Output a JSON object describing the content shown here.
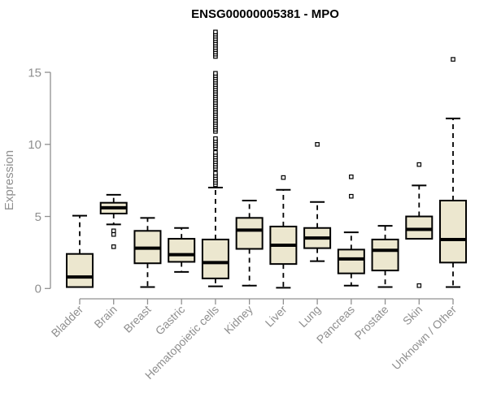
{
  "chart_data": {
    "type": "boxplot",
    "title": "ENSG00000005381 - MPO",
    "xlabel": "",
    "ylabel": "Expression",
    "y_ticks": [
      0,
      5,
      10,
      15
    ],
    "ylim": [
      0,
      17.9
    ],
    "grid": false,
    "legend": "none",
    "colors": {
      "box_fill": "#ece7cf",
      "box_border": "#000000",
      "median": "#000000",
      "whisker": "#000000",
      "outlier_fill": "#ffffff",
      "axis": "#909090",
      "tick_label": "#8f8f8f",
      "title": "#000000",
      "background": "#ffffff"
    },
    "categories": [
      "Bladder",
      "Brain",
      "Breast",
      "Gastric",
      "Hematopoietic cells",
      "Kidney",
      "Liver",
      "Lung",
      "Pancreas",
      "Prostate",
      "Skin",
      "Unknown / Other"
    ],
    "boxes": [
      {
        "category": "Bladder",
        "whisker_low": 0.1,
        "q1": 0.1,
        "median": 0.8,
        "q3": 2.4,
        "whisker_high": 5.05,
        "outliers": []
      },
      {
        "category": "Brain",
        "whisker_low": 4.45,
        "q1": 5.2,
        "median": 5.6,
        "q3": 5.95,
        "whisker_high": 6.5,
        "outliers": [
          4.0,
          3.75,
          2.9
        ]
      },
      {
        "category": "Breast",
        "whisker_low": 0.1,
        "q1": 1.75,
        "median": 2.8,
        "q3": 4.0,
        "whisker_high": 4.9,
        "outliers": []
      },
      {
        "category": "Gastric",
        "whisker_low": 1.15,
        "q1": 1.85,
        "median": 2.35,
        "q3": 3.45,
        "whisker_high": 4.2,
        "outliers": []
      },
      {
        "category": "Hematopoietic cells",
        "whisker_low": 0.15,
        "q1": 0.7,
        "median": 1.8,
        "q3": 3.4,
        "whisker_high": 7.0,
        "outliers": [
          7.2,
          7.36,
          7.52,
          7.68,
          7.84,
          8.0,
          8.32,
          8.48,
          8.64,
          8.8,
          8.96,
          9.12,
          9.28,
          9.44,
          9.76,
          9.92,
          10.08,
          10.24,
          10.4,
          10.9,
          11.05,
          11.21,
          11.36,
          11.52,
          11.67,
          11.83,
          11.98,
          12.14,
          12.29,
          12.45,
          12.6,
          12.76,
          12.91,
          13.07,
          13.22,
          13.38,
          13.53,
          13.69,
          13.84,
          14.0,
          14.15,
          14.31,
          14.46,
          14.62,
          14.77,
          14.93,
          16.1,
          16.26,
          16.41,
          16.57,
          16.72,
          16.88,
          17.03,
          17.19,
          17.34,
          17.5,
          17.65,
          17.8
        ]
      },
      {
        "category": "Kidney",
        "whisker_low": 0.2,
        "q1": 2.75,
        "median": 4.05,
        "q3": 4.9,
        "whisker_high": 6.1,
        "outliers": []
      },
      {
        "category": "Liver",
        "whisker_low": 0.05,
        "q1": 1.7,
        "median": 3.0,
        "q3": 4.3,
        "whisker_high": 6.85,
        "outliers": [
          7.7
        ]
      },
      {
        "category": "Lung",
        "whisker_low": 1.9,
        "q1": 2.8,
        "median": 3.5,
        "q3": 4.2,
        "whisker_high": 6.0,
        "outliers": [
          10.0
        ]
      },
      {
        "category": "Pancreas",
        "whisker_low": 0.2,
        "q1": 1.05,
        "median": 2.05,
        "q3": 2.7,
        "whisker_high": 3.9,
        "outliers": [
          6.4,
          7.75
        ]
      },
      {
        "category": "Prostate",
        "whisker_low": 0.1,
        "q1": 1.25,
        "median": 2.65,
        "q3": 3.4,
        "whisker_high": 4.35,
        "outliers": []
      },
      {
        "category": "Skin",
        "whisker_low": 3.45,
        "q1": 3.45,
        "median": 4.1,
        "q3": 5.0,
        "whisker_high": 7.15,
        "outliers": [
          8.6,
          0.2
        ]
      },
      {
        "category": "Unknown / Other",
        "whisker_low": 0.1,
        "q1": 1.8,
        "median": 3.4,
        "q3": 6.1,
        "whisker_high": 11.8,
        "outliers": [
          15.9
        ]
      }
    ]
  }
}
